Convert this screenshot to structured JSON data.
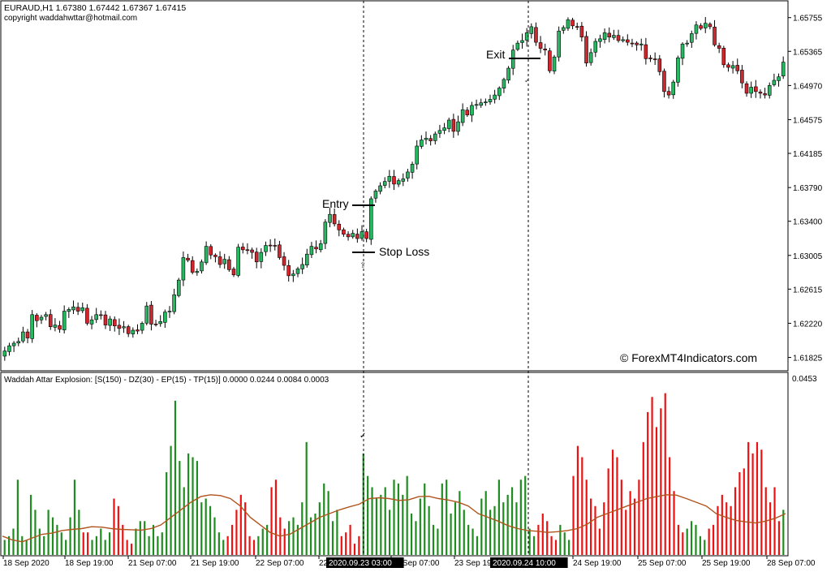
{
  "header": {
    "symbol_line": "EURAUD,H1  1.67380 1.67442 1.67367 1.67415",
    "copyright": "copyright waddahwttar@hotmail.com"
  },
  "indicator": {
    "title": "Waddah Attar Explosion: [S(150) - DZ(30) - EP(15) - TP(15)] 0.0000 0.0244 0.0084 0.0003",
    "top_value": "0.0453"
  },
  "watermark": "© ForexMT4Indicators.com",
  "annotations": {
    "entry": "Entry",
    "stop_loss": "Stop Loss",
    "exit": "Exit"
  },
  "colors": {
    "bull": "#26b861",
    "bear": "#d4242c",
    "hist_green": "#1f8c1f",
    "hist_red": "#ee1111",
    "signal_line": "#b0541e",
    "grid": "#000000"
  },
  "chart_data": [
    {
      "type": "candlestick",
      "price_axis": [
        "1.65755",
        "1.65365",
        "1.64970",
        "1.64575",
        "1.64185",
        "1.63790",
        "1.63400",
        "1.63005",
        "1.62615",
        "1.62220",
        "1.61825"
      ],
      "ylim": [
        1.6168,
        1.6594
      ],
      "markers": [
        {
          "label": "Entry",
          "price": 1.6366
        },
        {
          "label": "Stop Loss",
          "price": 1.6312
        },
        {
          "label": "Exit",
          "price": 1.6544
        }
      ],
      "closes": [
        1.619,
        1.6196,
        1.6199,
        1.6201,
        1.6212,
        1.6205,
        1.6232,
        1.6225,
        1.6229,
        1.6232,
        1.6218,
        1.622,
        1.6215,
        1.6236,
        1.6238,
        1.6241,
        1.6236,
        1.624,
        1.6222,
        1.6226,
        1.6232,
        1.6231,
        1.622,
        1.6227,
        1.6219,
        1.6216,
        1.6218,
        1.621,
        1.6214,
        1.6213,
        1.6222,
        1.6242,
        1.6221,
        1.6221,
        1.6224,
        1.6235,
        1.6236,
        1.6255,
        1.6272,
        1.6298,
        1.6295,
        1.6281,
        1.6282,
        1.6293,
        1.6311,
        1.6301,
        1.6299,
        1.629,
        1.6296,
        1.6284,
        1.6278,
        1.631,
        1.6307,
        1.6307,
        1.6304,
        1.6293,
        1.6304,
        1.6312,
        1.6312,
        1.6312,
        1.6298,
        1.6289,
        1.6277,
        1.6279,
        1.6285,
        1.629,
        1.6302,
        1.6311,
        1.6308,
        1.6314,
        1.6339,
        1.6348,
        1.6337,
        1.633,
        1.6325,
        1.6322,
        1.6326,
        1.632,
        1.6328,
        1.632,
        1.6366,
        1.6375,
        1.6381,
        1.6386,
        1.6392,
        1.6383,
        1.6387,
        1.6389,
        1.6397,
        1.6406,
        1.6427,
        1.6434,
        1.6436,
        1.6433,
        1.6441,
        1.6445,
        1.6448,
        1.6457,
        1.6444,
        1.6455,
        1.6469,
        1.6463,
        1.6474,
        1.6475,
        1.6477,
        1.6478,
        1.6481,
        1.6486,
        1.6494,
        1.6504,
        1.6517,
        1.6538,
        1.6546,
        1.6549,
        1.6558,
        1.6565,
        1.6547,
        1.654,
        1.6538,
        1.6514,
        1.653,
        1.656,
        1.6564,
        1.6573,
        1.6566,
        1.6565,
        1.6553,
        1.6523,
        1.6535,
        1.6548,
        1.6551,
        1.6558,
        1.6553,
        1.6555,
        1.6549,
        1.655,
        1.6547,
        1.6546,
        1.6544,
        1.6545,
        1.6528,
        1.6528,
        1.6527,
        1.6513,
        1.649,
        1.6486,
        1.6501,
        1.6529,
        1.6545,
        1.6546,
        1.6557,
        1.6567,
        1.6563,
        1.6569,
        1.6565,
        1.6544,
        1.654,
        1.6521,
        1.6518,
        1.652,
        1.6514,
        1.65,
        1.6488,
        1.6495,
        1.649,
        1.6488,
        1.6486,
        1.6497,
        1.6503,
        1.6507,
        1.6524
      ]
    },
    {
      "type": "bar",
      "title": "Waddah Attar Explosion: [S(150) - DZ(30) - EP(15) - TP(15)] 0.0000 0.0244 0.0084 0.0003",
      "ylim": [
        0,
        0.0453
      ],
      "x_ticks": [
        "18 Sep 2020",
        "18 Sep 19:00",
        "21 Sep 07:00",
        "21 Sep 19:00",
        "22 Sep 07:00",
        "22",
        "2020.09.23 03:00",
        "23 Sep 07:00",
        "23 Sep 19:00",
        "2020.09.24 10:00",
        "24 Sep 19:00",
        "25 Sep 07:00",
        "25 Sep 19:00",
        "28 Sep 07:00"
      ],
      "hist": [
        [
          "g",
          0.004
        ],
        [
          "g",
          0.005
        ],
        [
          "g",
          0.007
        ],
        [
          "g",
          0.02
        ],
        [
          "g",
          0.005
        ],
        [
          "g",
          0.004
        ],
        [
          "g",
          0.016
        ],
        [
          "g",
          0.012
        ],
        [
          "g",
          0.007
        ],
        [
          "g",
          0.005
        ],
        [
          "g",
          0.012
        ],
        [
          "g",
          0.01
        ],
        [
          "g",
          0.008
        ],
        [
          "g",
          0.006
        ],
        [
          "g",
          0.004
        ],
        [
          "g",
          0.01
        ],
        [
          "g",
          0.02
        ],
        [
          "g",
          0.012
        ],
        [
          "r",
          0.006
        ],
        [
          "r",
          0.006
        ],
        [
          "g",
          0.004
        ],
        [
          "g",
          0.005
        ],
        [
          "g",
          0.007
        ],
        [
          "g",
          0.004
        ],
        [
          "g",
          0.006
        ],
        [
          "r",
          0.015
        ],
        [
          "r",
          0.013
        ],
        [
          "r",
          0.008
        ],
        [
          "r",
          0.004
        ],
        [
          "r",
          0.003
        ],
        [
          "g",
          0.007
        ],
        [
          "g",
          0.009
        ],
        [
          "g",
          0.009
        ],
        [
          "g",
          0.005
        ],
        [
          "g",
          0.008
        ],
        [
          "g",
          0.005
        ],
        [
          "g",
          0.006
        ],
        [
          "g",
          0.022
        ],
        [
          "g",
          0.029
        ],
        [
          "g",
          0.041
        ],
        [
          "g",
          0.025
        ],
        [
          "g",
          0.018
        ],
        [
          "g",
          0.027
        ],
        [
          "g",
          0.026
        ],
        [
          "g",
          0.025
        ],
        [
          "g",
          0.014
        ],
        [
          "g",
          0.015
        ],
        [
          "g",
          0.013
        ],
        [
          "g",
          0.01
        ],
        [
          "g",
          0.006
        ],
        [
          "g",
          0.004
        ],
        [
          "r",
          0.005
        ],
        [
          "r",
          0.008
        ],
        [
          "r",
          0.012
        ],
        [
          "r",
          0.016
        ],
        [
          "r",
          0.014
        ],
        [
          "r",
          0.005
        ],
        [
          "r",
          0.004
        ],
        [
          "g",
          0.005
        ],
        [
          "g",
          0.007
        ],
        [
          "g",
          0.008
        ],
        [
          "r",
          0.018
        ],
        [
          "r",
          0.02
        ],
        [
          "r",
          0.01
        ],
        [
          "r",
          0.007
        ],
        [
          "g",
          0.009
        ],
        [
          "g",
          0.01
        ],
        [
          "g",
          0.008
        ],
        [
          "g",
          0.014
        ],
        [
          "g",
          0.03
        ],
        [
          "g",
          0.01
        ],
        [
          "g",
          0.011
        ],
        [
          "g",
          0.014
        ],
        [
          "g",
          0.019
        ],
        [
          "g",
          0.017
        ],
        [
          "g",
          0.009
        ],
        [
          "g",
          0.012
        ],
        [
          "r",
          0.005
        ],
        [
          "r",
          0.006
        ],
        [
          "r",
          0.008
        ],
        [
          "r",
          0.003
        ],
        [
          "r",
          0.005
        ],
        [
          "g",
          0.027
        ],
        [
          "g",
          0.021
        ],
        [
          "g",
          0.018
        ],
        [
          "g",
          0.015
        ],
        [
          "g",
          0.016
        ],
        [
          "g",
          0.018
        ],
        [
          "g",
          0.012
        ],
        [
          "g",
          0.02
        ],
        [
          "g",
          0.019
        ],
        [
          "g",
          0.016
        ],
        [
          "g",
          0.021
        ],
        [
          "g",
          0.011
        ],
        [
          "g",
          0.009
        ],
        [
          "g",
          0.015
        ],
        [
          "g",
          0.019
        ],
        [
          "g",
          0.013
        ],
        [
          "g",
          0.008
        ],
        [
          "g",
          0.007
        ],
        [
          "g",
          0.019
        ],
        [
          "g",
          0.02
        ],
        [
          "g",
          0.011
        ],
        [
          "g",
          0.014
        ],
        [
          "g",
          0.017
        ],
        [
          "g",
          0.012
        ],
        [
          "g",
          0.008
        ],
        [
          "g",
          0.007
        ],
        [
          "g",
          0.005
        ],
        [
          "g",
          0.015
        ],
        [
          "g",
          0.017
        ],
        [
          "g",
          0.012
        ],
        [
          "g",
          0.013
        ],
        [
          "g",
          0.02
        ],
        [
          "g",
          0.014
        ],
        [
          "g",
          0.016
        ],
        [
          "g",
          0.018
        ],
        [
          "g",
          0.014
        ],
        [
          "g",
          0.02
        ],
        [
          "g",
          0.021
        ],
        [
          "g",
          0.007
        ],
        [
          "g",
          0.005
        ],
        [
          "r",
          0.008
        ],
        [
          "r",
          0.011
        ],
        [
          "r",
          0.009
        ],
        [
          "r",
          0.005
        ],
        [
          "r",
          0.004
        ],
        [
          "g",
          0.008
        ],
        [
          "g",
          0.006
        ],
        [
          "g",
          0.004
        ],
        [
          "r",
          0.021
        ],
        [
          "r",
          0.029
        ],
        [
          "r",
          0.026
        ],
        [
          "r",
          0.02
        ],
        [
          "r",
          0.015
        ],
        [
          "r",
          0.013
        ],
        [
          "r",
          0.007
        ],
        [
          "r",
          0.014
        ],
        [
          "r",
          0.023
        ],
        [
          "r",
          0.028
        ],
        [
          "r",
          0.026
        ],
        [
          "r",
          0.02
        ],
        [
          "r",
          0.012
        ],
        [
          "r",
          0.017
        ],
        [
          "r",
          0.015
        ],
        [
          "r",
          0.02
        ],
        [
          "r",
          0.03
        ],
        [
          "r",
          0.038
        ],
        [
          "r",
          0.042
        ],
        [
          "r",
          0.034
        ],
        [
          "r",
          0.039
        ],
        [
          "r",
          0.043
        ],
        [
          "r",
          0.026
        ],
        [
          "r",
          0.017
        ],
        [
          "r",
          0.008
        ],
        [
          "r",
          0.006
        ],
        [
          "g",
          0.007
        ],
        [
          "g",
          0.009
        ],
        [
          "g",
          0.008
        ],
        [
          "g",
          0.005
        ],
        [
          "g",
          0.004
        ],
        [
          "r",
          0.007
        ],
        [
          "r",
          0.008
        ],
        [
          "r",
          0.013
        ],
        [
          "r",
          0.016
        ],
        [
          "r",
          0.014
        ],
        [
          "r",
          0.013
        ],
        [
          "r",
          0.018
        ],
        [
          "r",
          0.022
        ],
        [
          "r",
          0.023
        ],
        [
          "r",
          0.03
        ],
        [
          "r",
          0.027
        ],
        [
          "r",
          0.03
        ],
        [
          "r",
          0.028
        ],
        [
          "r",
          0.018
        ],
        [
          "r",
          0.014
        ],
        [
          "r",
          0.018
        ],
        [
          "r",
          0.009
        ],
        [
          "g",
          0.012
        ]
      ],
      "signal_line": [
        0.005,
        0.004,
        0.0035,
        0.0045,
        0.0055,
        0.0058,
        0.0065,
        0.0068,
        0.007,
        0.0075,
        0.0074,
        0.007,
        0.0068,
        0.0067,
        0.0066,
        0.007,
        0.008,
        0.01,
        0.012,
        0.014,
        0.0155,
        0.016,
        0.0158,
        0.015,
        0.013,
        0.01,
        0.008,
        0.006,
        0.005,
        0.0055,
        0.007,
        0.0085,
        0.01,
        0.011,
        0.012,
        0.0128,
        0.0135,
        0.015,
        0.0152,
        0.015,
        0.0145,
        0.0147,
        0.0155,
        0.0156,
        0.015,
        0.0146,
        0.014,
        0.013,
        0.011,
        0.01,
        0.009,
        0.0078,
        0.007,
        0.0065,
        0.0063,
        0.006,
        0.0062,
        0.0065,
        0.007,
        0.0082,
        0.01,
        0.011,
        0.012,
        0.013,
        0.014,
        0.015,
        0.0155,
        0.016,
        0.0159,
        0.015,
        0.014,
        0.013,
        0.011,
        0.01,
        0.0092,
        0.0088,
        0.0085,
        0.009,
        0.0098,
        0.011
      ],
      "x_hint": [
        "18 Sep 2020",
        "28 Sep 07:00"
      ]
    }
  ]
}
